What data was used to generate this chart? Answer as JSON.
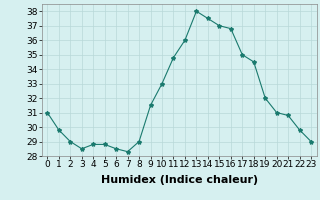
{
  "x": [
    0,
    1,
    2,
    3,
    4,
    5,
    6,
    7,
    8,
    9,
    10,
    11,
    12,
    13,
    14,
    15,
    16,
    17,
    18,
    19,
    20,
    21,
    22,
    23
  ],
  "y": [
    31,
    29.8,
    29,
    28.5,
    28.8,
    28.8,
    28.5,
    28.3,
    29,
    31.5,
    33,
    34.8,
    36,
    38,
    37.5,
    37,
    36.8,
    35,
    34.5,
    32,
    31,
    30.8,
    29.8,
    29
  ],
  "xlabel": "Humidex (Indice chaleur)",
  "xlim": [
    -0.5,
    23.5
  ],
  "ylim": [
    28,
    38.5
  ],
  "yticks": [
    28,
    29,
    30,
    31,
    32,
    33,
    34,
    35,
    36,
    37,
    38
  ],
  "xticks": [
    0,
    1,
    2,
    3,
    4,
    5,
    6,
    7,
    8,
    9,
    10,
    11,
    12,
    13,
    14,
    15,
    16,
    17,
    18,
    19,
    20,
    21,
    22,
    23
  ],
  "line_color": "#1a7a6e",
  "marker": "*",
  "marker_size": 3,
  "background_color": "#d6f0f0",
  "grid_color": "#b8d8d8",
  "tick_fontsize": 6.5,
  "xlabel_fontsize": 8,
  "xlabel_fontweight": "bold"
}
